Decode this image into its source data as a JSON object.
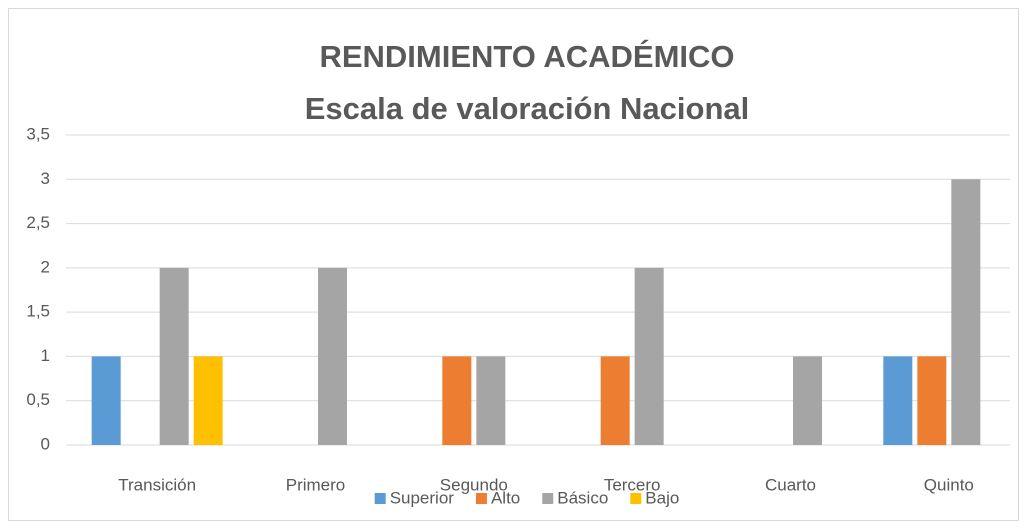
{
  "chart_data": {
    "type": "bar",
    "title": "RENDIMIENTO ACADÉMICO",
    "subtitle": "Escala de valoración Nacional",
    "categories": [
      "Transición",
      "Primero",
      "Segundo",
      "Tercero",
      "Cuarto",
      "Quinto"
    ],
    "series": [
      {
        "name": "Superior",
        "color": "#5b9bd5",
        "values": [
          1,
          0,
          0,
          0,
          0,
          1
        ]
      },
      {
        "name": "Alto",
        "color": "#ed7d31",
        "values": [
          0,
          0,
          1,
          1,
          0,
          1
        ]
      },
      {
        "name": "Básico",
        "color": "#a5a5a5",
        "values": [
          2,
          2,
          1,
          2,
          1,
          3
        ]
      },
      {
        "name": "Bajo",
        "color": "#ffc000",
        "values": [
          1,
          0,
          0,
          0,
          0,
          0
        ]
      }
    ],
    "ylim": [
      0,
      3.5
    ],
    "yticks": [
      0,
      {
        "value": 0.5,
        "label": "0,5"
      },
      1,
      {
        "value": 1.5,
        "label": "1,5"
      },
      2,
      {
        "value": 2.5,
        "label": "2,5"
      },
      3,
      {
        "value": 3.5,
        "label": "3,5"
      }
    ],
    "grid": true,
    "legend": "bottom"
  }
}
